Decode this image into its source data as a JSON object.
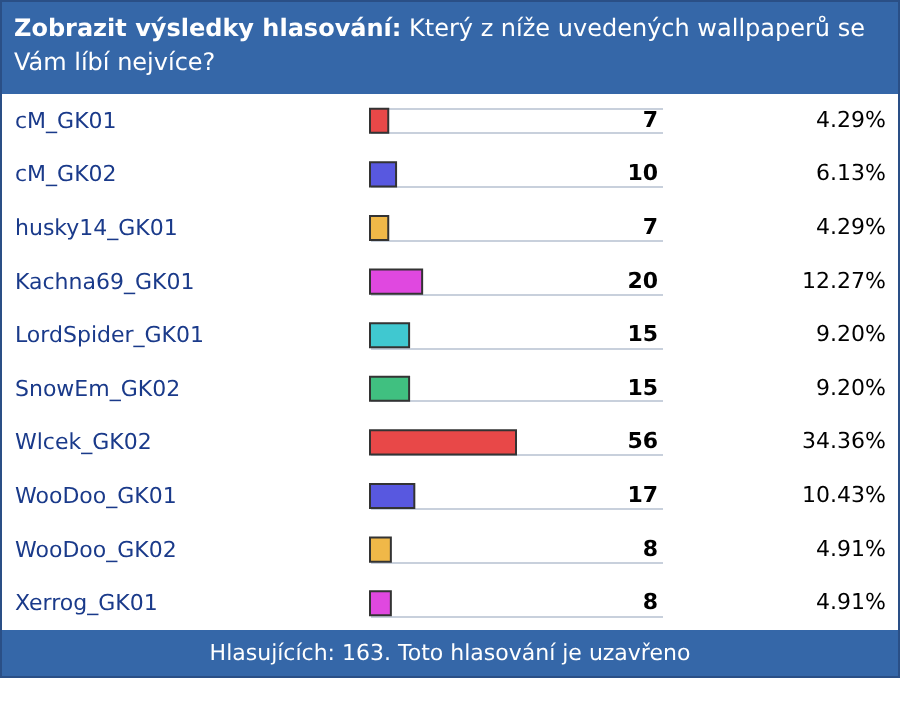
{
  "chart_data": {
    "type": "bar",
    "orientation": "horizontal",
    "title": "Zobrazit výsledky hlasování:",
    "subtitle": "Který z níže uvedených wallpaperů se Vám líbí nejvíce?",
    "categories": [
      "cM_GK01",
      "cM_GK02",
      "husky14_GK01",
      "Kachna69_GK01",
      "LordSpider_GK01",
      "SnowEm_GK02",
      "Wlcek_GK02",
      "WooDoo_GK01",
      "WooDoo_GK02",
      "Xerrog_GK01"
    ],
    "values": [
      7,
      10,
      7,
      20,
      15,
      15,
      56,
      17,
      8,
      8
    ],
    "colors": [
      "#e84848",
      "#5858e0",
      "#f0b848",
      "#e048e0",
      "#40c8d0",
      "#40c080",
      "#e84848",
      "#5858e0",
      "#f0b848",
      "#e048e0"
    ],
    "data_labels": true,
    "grid": "y",
    "annotations": [
      "4.29%",
      "6.13%",
      "4.29%",
      "12.27%",
      "9.20%",
      "9.20%",
      "34.36%",
      "10.43%",
      "4.91%",
      "4.91%",
      "Hlasujících: 163. Toto hlasování je uzavřeno"
    ]
  }
}
